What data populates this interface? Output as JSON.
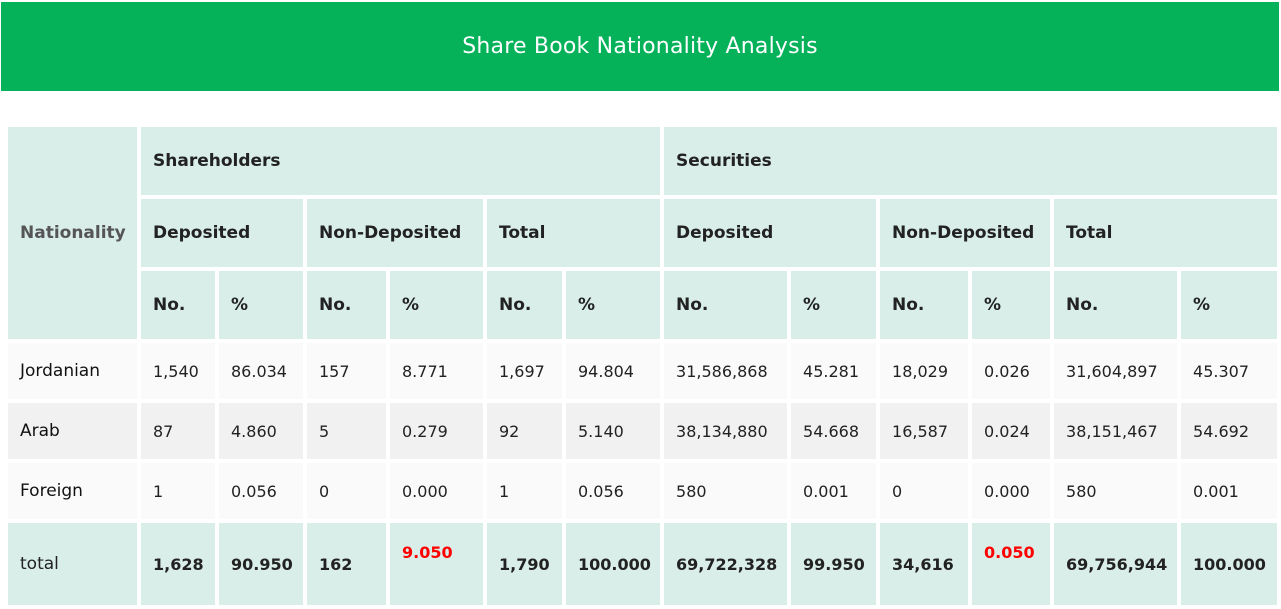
{
  "title": "Share Book Nationality Analysis",
  "colors": {
    "banner": "#05b25a",
    "header_fill": "#d9eee8",
    "highlight": "#ff0000"
  },
  "headers": {
    "nationality": "Nationality",
    "shareholders": "Shareholders",
    "securities": "Securities",
    "deposited": "Deposited",
    "non_deposited": "Non-Deposited",
    "total": "Total",
    "no": "No.",
    "pct": "%"
  },
  "rows": [
    {
      "name": "Jordanian",
      "values": [
        "1,540",
        "86.034",
        "157",
        "8.771",
        "1,697",
        "94.804",
        "31,586,868",
        "45.281",
        "18,029",
        "0.026",
        "31,604,897",
        "45.307"
      ]
    },
    {
      "name": "Arab",
      "values": [
        "87",
        "4.860",
        "5",
        "0.279",
        "92",
        "5.140",
        "38,134,880",
        "54.668",
        "16,587",
        "0.024",
        "38,151,467",
        "54.692"
      ]
    },
    {
      "name": "Foreign",
      "values": [
        "1",
        "0.056",
        "0",
        "0.000",
        "1",
        "0.056",
        "580",
        "0.001",
        "0",
        "0.000",
        "580",
        "0.001"
      ]
    }
  ],
  "total": {
    "name": "total",
    "values": [
      "1,628",
      "90.950",
      "162",
      "9.050",
      "1,790",
      "100.000",
      "69,722,328",
      "99.950",
      "34,616",
      "0.050",
      "69,756,944",
      "100.000"
    ]
  }
}
